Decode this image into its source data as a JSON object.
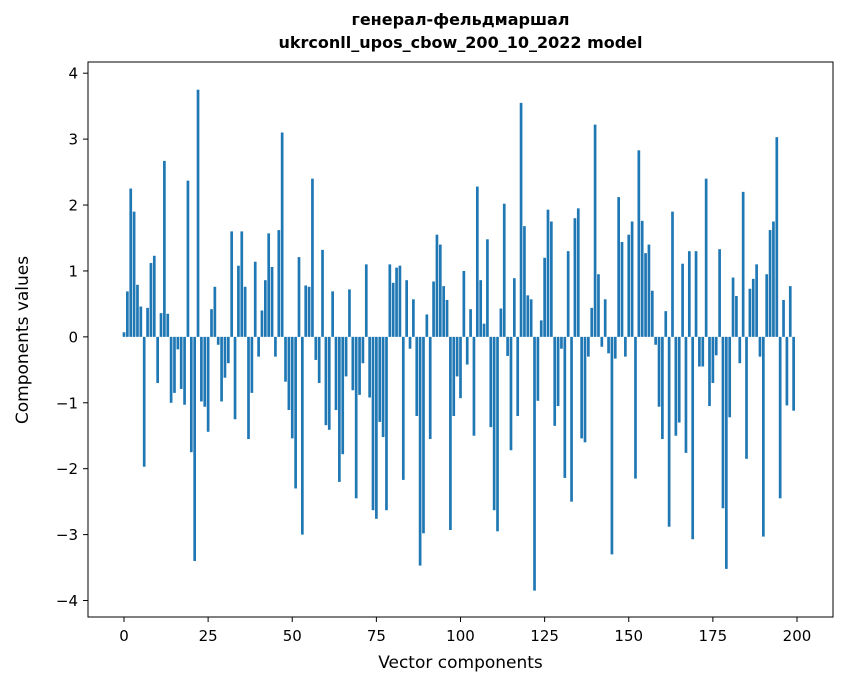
{
  "figure": {
    "background": "#ffffff"
  },
  "chart_data": {
    "type": "bar",
    "title_line1": "генерал-фельдмаршал",
    "title_line2": "ukrconll_upos_cbow_200_10_2022 model",
    "xlabel": "Vector components",
    "ylabel": "Components values",
    "bar_color": "#1f77b4",
    "axis_color": "#000000",
    "grid": false,
    "legend": false,
    "xlim": [
      -10.7,
      210.7
    ],
    "ylim": [
      -4.25,
      4.17
    ],
    "xticks": [
      0,
      25,
      50,
      75,
      100,
      125,
      150,
      175,
      200
    ],
    "yticks": [
      -4,
      -3,
      -2,
      -1,
      0,
      1,
      2,
      3,
      4
    ],
    "n_components": 200,
    "values": [
      0.07,
      0.69,
      2.25,
      1.9,
      0.79,
      0.46,
      -1.97,
      0.44,
      1.12,
      1.23,
      -0.7,
      0.36,
      2.67,
      0.35,
      -1.0,
      -0.85,
      -0.19,
      -0.79,
      -1.03,
      2.37,
      -1.75,
      -3.4,
      3.75,
      -0.98,
      -1.06,
      -1.44,
      0.42,
      0.76,
      -0.12,
      -0.98,
      -0.62,
      -0.4,
      1.6,
      -1.25,
      1.08,
      1.6,
      0.76,
      -1.55,
      -0.85,
      1.14,
      -0.3,
      0.4,
      0.86,
      1.57,
      1.06,
      -0.3,
      1.62,
      3.1,
      -0.68,
      -1.11,
      -1.54,
      -2.3,
      1.21,
      -3.0,
      0.78,
      0.76,
      2.4,
      -0.35,
      -0.7,
      1.32,
      -1.34,
      -1.41,
      0.69,
      -1.11,
      -2.2,
      -1.78,
      -0.6,
      0.72,
      -0.81,
      -2.45,
      -0.88,
      -0.4,
      1.1,
      -0.92,
      -2.63,
      -2.76,
      -1.29,
      -1.52,
      -2.63,
      1.1,
      0.82,
      1.05,
      1.08,
      -2.17,
      0.86,
      -0.18,
      0.57,
      -1.2,
      -3.47,
      -2.98,
      0.34,
      -1.55,
      0.84,
      1.55,
      1.4,
      0.77,
      0.56,
      -2.93,
      -1.2,
      -0.6,
      -0.93,
      1.0,
      -0.42,
      0.42,
      -1.5,
      2.28,
      0.86,
      0.2,
      1.48,
      -1.37,
      -2.63,
      -2.95,
      0.43,
      2.02,
      -0.29,
      -1.72,
      0.89,
      -1.2,
      3.55,
      1.68,
      0.63,
      0.57,
      -3.85,
      -0.97,
      0.25,
      1.2,
      1.93,
      1.75,
      -1.35,
      -1.05,
      -0.18,
      -2.14,
      1.3,
      -2.5,
      1.8,
      1.95,
      -1.54,
      -1.6,
      -0.3,
      0.44,
      3.22,
      0.95,
      -0.15,
      0.57,
      -0.25,
      -3.3,
      -0.33,
      2.12,
      1.44,
      -0.3,
      1.55,
      1.75,
      -2.15,
      2.83,
      1.76,
      1.27,
      1.4,
      0.7,
      -0.12,
      -1.06,
      -1.55,
      0.39,
      -2.88,
      1.9,
      -1.5,
      -1.3,
      1.11,
      -1.76,
      1.3,
      -3.07,
      1.3,
      -0.45,
      -0.45,
      2.4,
      -1.05,
      -0.7,
      -0.28,
      1.33,
      -2.6,
      -3.52,
      -1.22,
      0.9,
      0.62,
      -0.4,
      2.2,
      -1.85,
      0.73,
      0.88,
      1.1,
      -0.3,
      -3.03,
      0.95,
      1.62,
      1.75,
      3.03,
      -2.45,
      0.56,
      -1.04,
      0.77,
      -1.12
    ]
  }
}
